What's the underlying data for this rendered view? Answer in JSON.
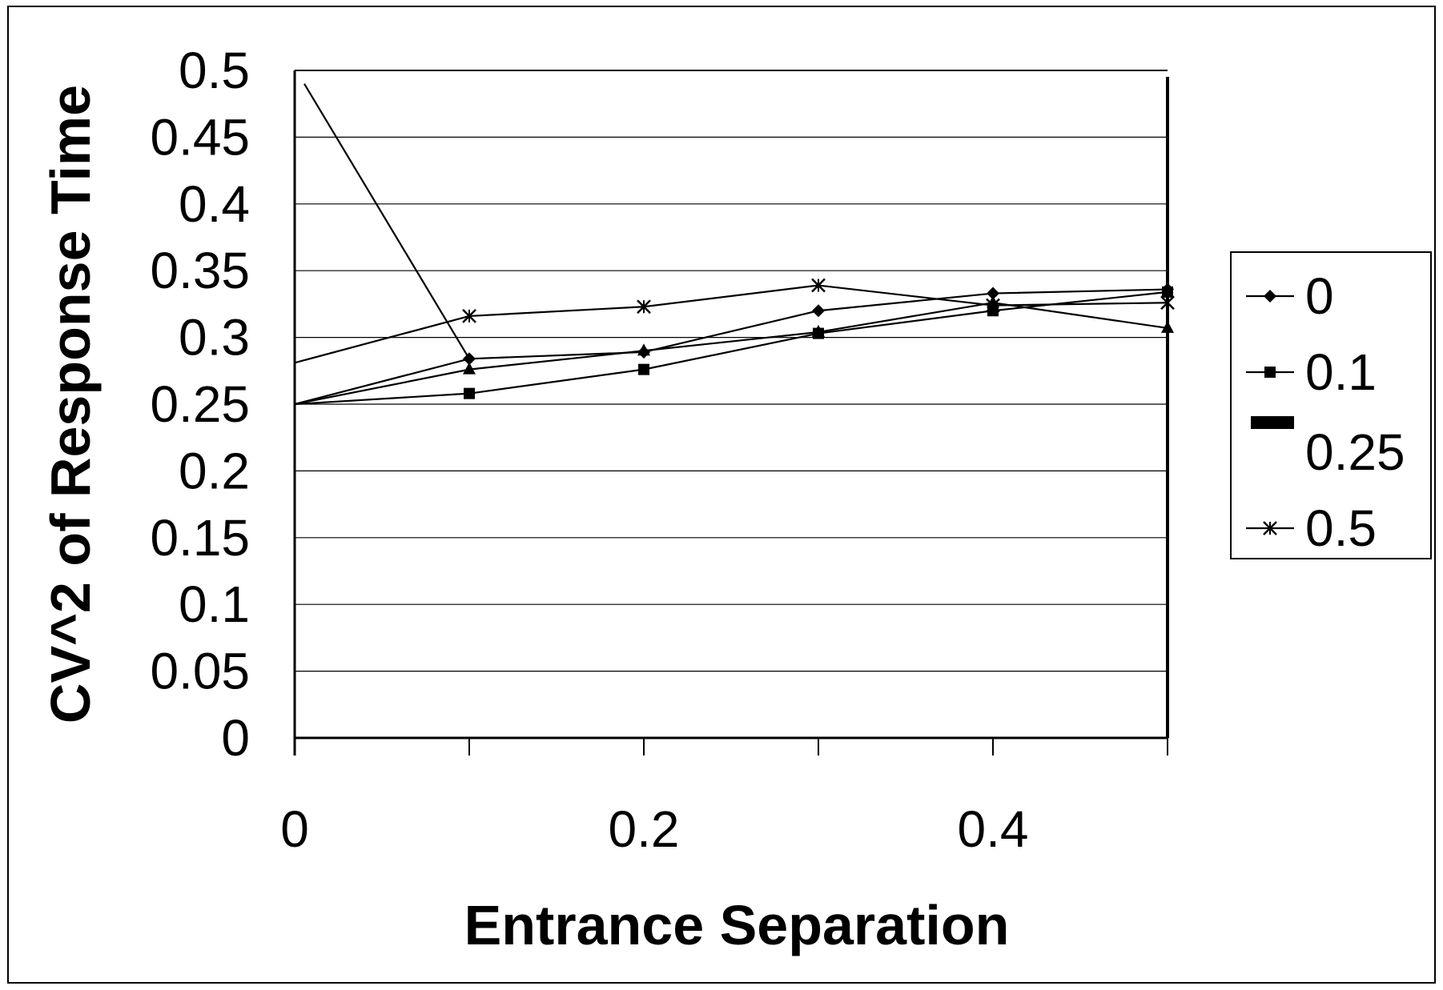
{
  "chart_data": {
    "type": "line",
    "title": "",
    "xlabel": "Entrance Separation",
    "ylabel": "CV^2 of Response Time",
    "xlim": [
      0,
      0.5
    ],
    "ylim": [
      0,
      0.5
    ],
    "x_ticks": [
      0,
      0.2,
      0.4
    ],
    "x_tick_labels": [
      "0",
      "0.2",
      "0.4"
    ],
    "y_ticks": [
      0,
      0.05,
      0.1,
      0.15,
      0.2,
      0.25,
      0.3,
      0.35,
      0.4,
      0.45,
      0.5
    ],
    "y_tick_labels": [
      "0",
      "0.05",
      "0.1",
      "0.15",
      "0.2",
      "0.25",
      "0.3",
      "0.35",
      "0.4",
      "0.45",
      "0.5"
    ],
    "grid": true,
    "legend_position": "right",
    "x": [
      0,
      0.1,
      0.2,
      0.3,
      0.4,
      0.5
    ],
    "series": [
      {
        "name": "0",
        "marker": "diamond",
        "values": [
          0.25,
          0.284,
          0.289,
          0.32,
          0.333,
          0.336
        ]
      },
      {
        "name": "0.1",
        "marker": "square",
        "values": [
          0.25,
          0.258,
          0.276,
          0.303,
          0.32,
          0.334
        ]
      },
      {
        "name": "0.25",
        "marker": "triangle",
        "values": [
          0.25,
          0.276,
          0.29,
          0.304,
          0.326,
          0.307
        ]
      },
      {
        "name": "0.5",
        "marker": "x",
        "values": [
          0.281,
          0.316,
          0.323,
          0.339,
          0.324,
          0.326
        ]
      }
    ],
    "extra_segment": {
      "series": "0",
      "from": [
        0,
        0.49
      ],
      "to": [
        0.1,
        0.284
      ]
    },
    "colors": {
      "line": "#000000",
      "grid": "#000000",
      "background": "#ffffff"
    }
  }
}
